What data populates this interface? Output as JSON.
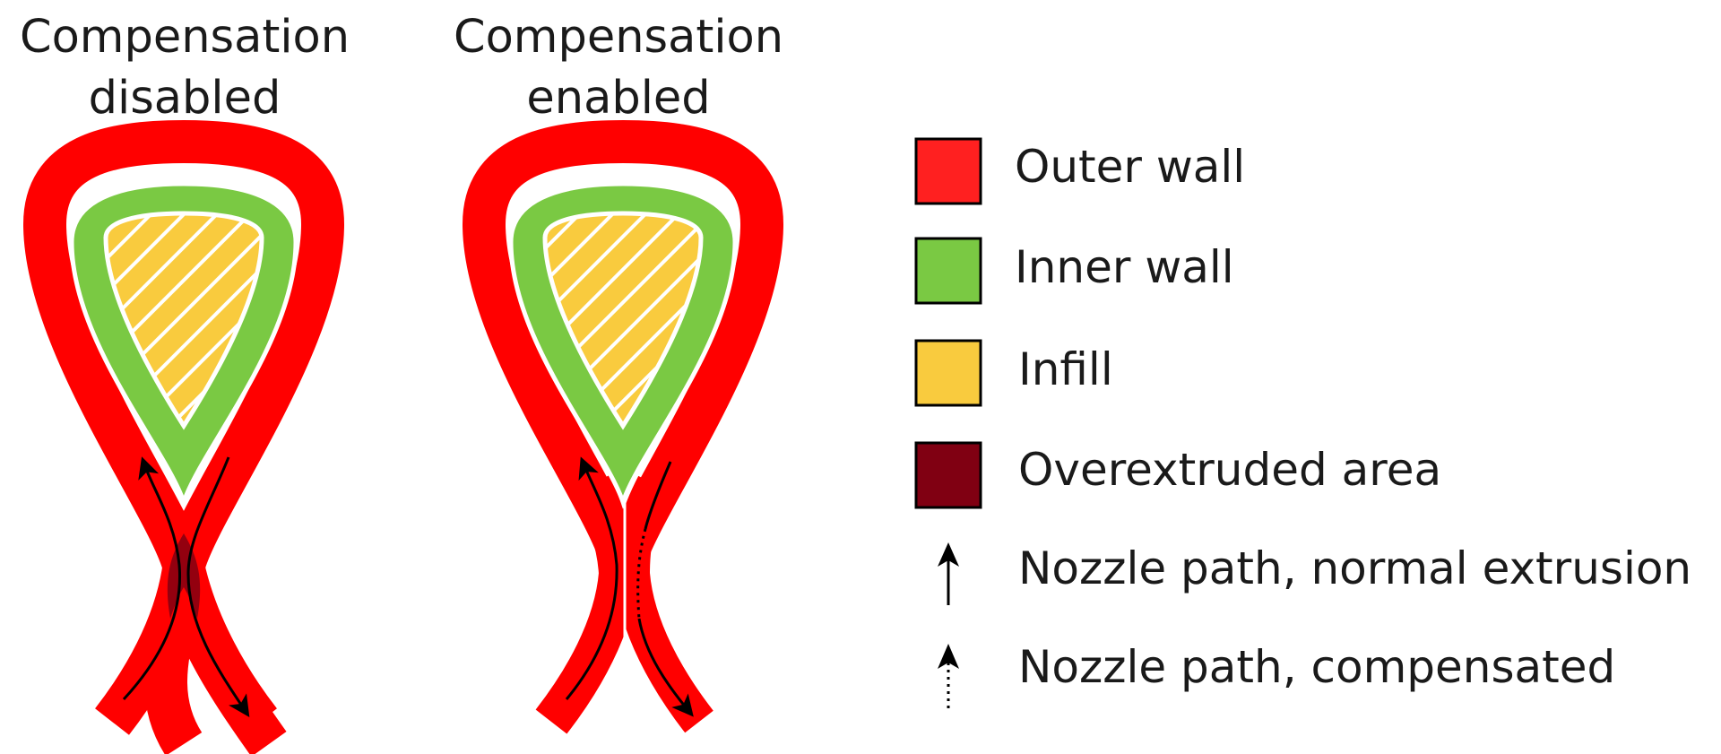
{
  "panels": [
    {
      "title_line1": "Compensation",
      "title_line2": "disabled"
    },
    {
      "title_line1": "Compensation",
      "title_line2": "enabled"
    }
  ],
  "legend": [
    {
      "label": "Outer wall",
      "swatch": "#ff2020",
      "kind": "swatch"
    },
    {
      "label": "Inner wall",
      "swatch": "#7ac943",
      "kind": "swatch"
    },
    {
      "label": "Infill",
      "swatch": "#f9cb3e",
      "kind": "swatch"
    },
    {
      "label": "Overextruded area",
      "swatch": "#800012",
      "kind": "swatch"
    },
    {
      "label": "Nozzle path, normal extrusion",
      "kind": "solid-arrow"
    },
    {
      "label": "Nozzle path, compensated",
      "kind": "dotted-arrow"
    }
  ],
  "colors": {
    "outer_wall": "#ff0000",
    "inner_wall": "#7ac943",
    "infill": "#f9cb3e",
    "overextruded": "#800012",
    "separator": "#ffffff",
    "path": "#000000"
  }
}
